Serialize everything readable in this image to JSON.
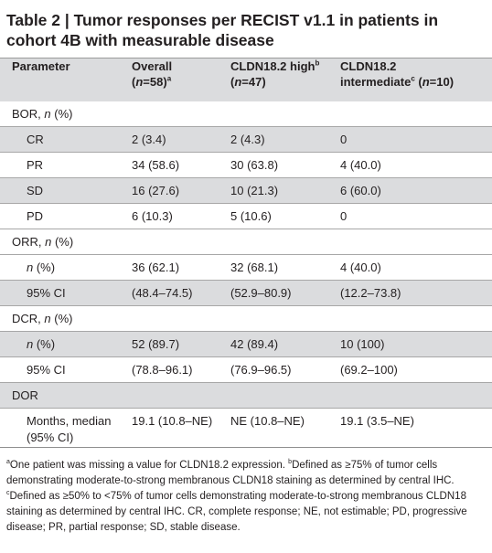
{
  "title": "Table 2 | Tumor responses per RECIST v1.1 in patients in cohort 4B with measurable disease",
  "header": {
    "param": "Parameter",
    "overall_line1": "Overall",
    "overall_line2_n": "n",
    "overall_line2_rest": "=58)",
    "overall_sup": "a",
    "high_line1": "CLDN18.2 high",
    "high_sup": "b",
    "high_line2_n": "n",
    "high_line2_rest": "=47)",
    "inter_line1": "CLDN18.2",
    "inter_line2": "intermediate",
    "inter_sup": "c",
    "inter_n": "n",
    "inter_rest": "=10)"
  },
  "sections": {
    "bor": {
      "label": "BOR, ",
      "n": "n",
      "rest": " (%)"
    },
    "orr": {
      "label": "ORR, ",
      "n": "n",
      "rest": " (%)"
    },
    "dcr": {
      "label": "DCR, ",
      "n": "n",
      "rest": " (%)"
    },
    "dor": {
      "label": "DOR"
    }
  },
  "rows": {
    "cr": {
      "label": "CR",
      "overall": "2 (3.4)",
      "high": "2 (4.3)",
      "inter": "0"
    },
    "pr": {
      "label": "PR",
      "overall": "34 (58.6)",
      "high": "30 (63.8)",
      "inter": "4 (40.0)"
    },
    "sd": {
      "label": "SD",
      "overall": "16 (27.6)",
      "high": "10 (21.3)",
      "inter": "6 (60.0)"
    },
    "pd": {
      "label": "PD",
      "overall": "6 (10.3)",
      "high": "5 (10.6)",
      "inter": "0"
    },
    "orr_n": {
      "n": "n",
      "rest": " (%)",
      "overall": "36 (62.1)",
      "high": "32 (68.1)",
      "inter": "4 (40.0)"
    },
    "orr_ci": {
      "label": "95% CI",
      "overall": "(48.4–74.5)",
      "high": "(52.9–80.9)",
      "inter": "(12.2–73.8)"
    },
    "dcr_n": {
      "n": "n",
      "rest": " (%)",
      "overall": "52 (89.7)",
      "high": "42 (89.4)",
      "inter": "10 (100)"
    },
    "dcr_ci": {
      "label": "95% CI",
      "overall": "(78.8–96.1)",
      "high": "(76.9–96.5)",
      "inter": "(69.2–100)"
    },
    "dor_med": {
      "label1": "Months, median",
      "label2": "(95% CI)",
      "overall": "19.1 (10.8–NE)",
      "high": "NE (10.8–NE)",
      "inter": "19.1 (3.5–NE)"
    }
  },
  "footnote": {
    "sup_a": "a",
    "a": "One patient was missing a value for CLDN18.2 expression. ",
    "sup_b": "b",
    "b": "Defined as ≥75% of tumor cells demonstrating moderate-to-strong membranous CLDN18 staining as determined by central IHC. ",
    "sup_c": "c",
    "c": "Defined as ≥50% to <75% of tumor cells demonstrating moderate-to-strong membranous CLDN18 staining as determined by central IHC. CR, complete response; NE, not estimable; PD, progressive disease; PR, partial response; SD, stable disease."
  }
}
